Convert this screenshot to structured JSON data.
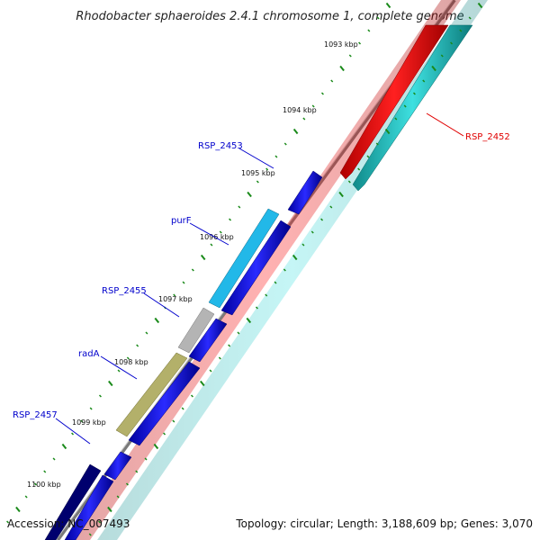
{
  "title": "Rhodobacter sphaeroides 2.4.1 chromosome 1, complete genome",
  "accession": "Accession: NC_007493",
  "summary": "Topology: circular; Length: 3,188,609 bp; Genes: 3,070",
  "map": {
    "start_kbp": 1092.5,
    "end_kbp": 1100.5,
    "tick_labels": [
      "1093 kbp",
      "1094 kbp",
      "1095 kbp",
      "1096 kbp",
      "1097 kbp",
      "1098 kbp",
      "1099 kbp",
      "1100 kbp"
    ]
  },
  "genes": [
    {
      "label": "RSP_2452",
      "color": "#ff0000",
      "strand": "reverse"
    },
    {
      "label": "RSP_2453",
      "color": "#0000ff",
      "strand": "forward"
    },
    {
      "label": "purF",
      "color": "#00bfef",
      "strand": "forward"
    },
    {
      "label": "RSP_2455",
      "color": "#b4b4b4",
      "strand": "forward"
    },
    {
      "label": "radA",
      "color": "#b3b06a",
      "strand": "forward"
    },
    {
      "label": "RSP_2457",
      "color": "#000080",
      "strand": "forward"
    }
  ],
  "colors": {
    "backbone": "#7a7a7a",
    "tick": "#1a8a1a",
    "label_blue": "#0000cc",
    "label_red": "#e00000",
    "cyan_track": "#21c8c8",
    "blue_track": "#0000ff"
  }
}
